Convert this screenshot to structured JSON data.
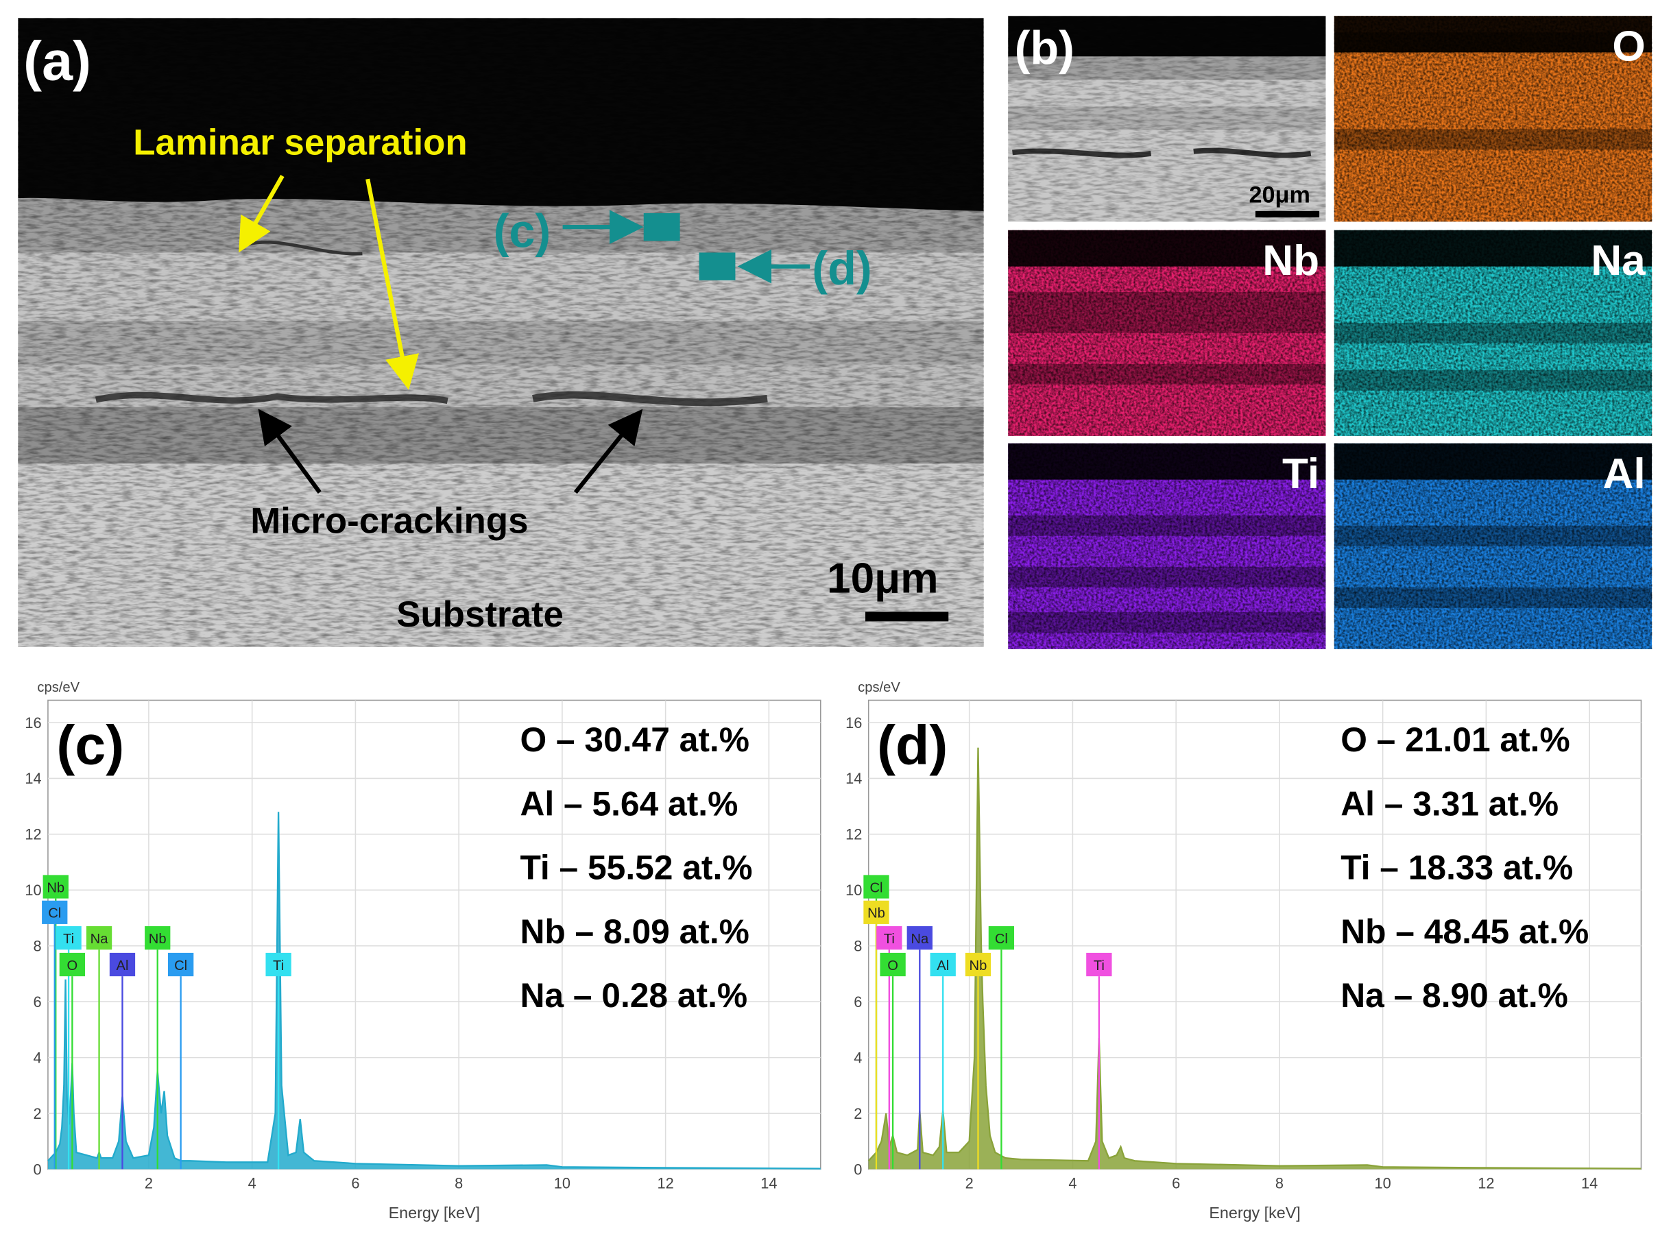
{
  "micrograph_a": {
    "label": "(a)",
    "annotations": [
      "Laminar separation",
      "Micro-crackings",
      "Substrate"
    ],
    "markers": [
      "(c)",
      "(d)"
    ],
    "scale_bar": "10μm"
  },
  "micrograph_b": {
    "label": "(b)",
    "scale_bar": "20μm",
    "maps": [
      {
        "element": "O",
        "color": "#e8751a"
      },
      {
        "element": "Nb",
        "color": "#e8206e"
      },
      {
        "element": "Na",
        "color": "#20c8cc"
      },
      {
        "element": "Ti",
        "color": "#8a1ee8"
      },
      {
        "element": "Al",
        "color": "#1a80e0"
      }
    ]
  },
  "chart_data": [
    {
      "type": "area",
      "label": "(c)",
      "y_label": "cps/eV",
      "x_label": "Energy [keV]",
      "color": "#22aacc",
      "x": [
        0.05,
        0.2,
        0.28,
        0.32,
        0.36,
        0.39,
        0.42,
        0.46,
        0.5,
        0.52,
        0.55,
        0.6,
        0.8,
        1.0,
        1.04,
        1.08,
        1.3,
        1.42,
        1.49,
        1.56,
        1.7,
        2.0,
        2.1,
        2.17,
        2.24,
        2.3,
        2.36,
        2.5,
        2.62,
        2.8,
        3.5,
        4.3,
        4.45,
        4.51,
        4.57,
        4.7,
        4.85,
        4.93,
        5.0,
        5.2,
        6,
        8,
        9.7,
        10,
        12,
        14,
        15
      ],
      "values": [
        0.3,
        0.6,
        0.9,
        1.5,
        3,
        6.8,
        2.5,
        1.6,
        3,
        3.8,
        2,
        0.6,
        0.5,
        0.4,
        0.6,
        0.4,
        0.4,
        1,
        2.6,
        1,
        0.4,
        0.5,
        1.5,
        3.5,
        2,
        2.8,
        1.2,
        0.4,
        0.3,
        0.3,
        0.25,
        0.25,
        2,
        12.8,
        3,
        0.5,
        0.6,
        1.8,
        0.6,
        0.3,
        0.2,
        0.12,
        0.15,
        0.08,
        0.05,
        0.03,
        0.02
      ],
      "xlim": [
        0.05,
        15
      ],
      "ylim": [
        0,
        16.8
      ],
      "xticks": [
        2,
        4,
        6,
        8,
        10,
        12,
        14
      ],
      "yticks": [
        0,
        2,
        4,
        6,
        8,
        10,
        12,
        14,
        16
      ],
      "grid": true,
      "composition": [
        "O – 30.47 at.%",
        "Al – 5.64 at.%",
        "Ti – 55.52 at.%",
        "Nb – 8.09 at.%",
        "Na – 0.28 at.%"
      ],
      "peak_labels": [
        {
          "label": "Nb",
          "x": 0.2,
          "color": "#33dd33"
        },
        {
          "label": "Cl",
          "x": 0.18,
          "color": "#2a9cf0"
        },
        {
          "label": "Ti",
          "x": 0.45,
          "color": "#33e0f0"
        },
        {
          "label": "Na",
          "x": 1.04,
          "color": "#66dd33"
        },
        {
          "label": "Nb",
          "x": 2.17,
          "color": "#33dd33"
        },
        {
          "label": "O",
          "x": 0.52,
          "color": "#33dd33"
        },
        {
          "label": "Al",
          "x": 1.49,
          "color": "#4a4ae0"
        },
        {
          "label": "Cl",
          "x": 2.62,
          "color": "#2a9cf0"
        },
        {
          "label": "Ti",
          "x": 4.51,
          "color": "#33e0f0"
        }
      ]
    },
    {
      "type": "area",
      "label": "(d)",
      "y_label": "cps/eV",
      "x_label": "Energy [keV]",
      "color": "#8aa33a",
      "x": [
        0.05,
        0.2,
        0.3,
        0.39,
        0.45,
        0.52,
        0.6,
        0.8,
        1.0,
        1.04,
        1.1,
        1.3,
        1.42,
        1.49,
        1.56,
        1.8,
        2.0,
        2.1,
        2.17,
        2.23,
        2.26,
        2.32,
        2.4,
        2.5,
        2.7,
        3,
        4.3,
        4.45,
        4.51,
        4.57,
        4.7,
        4.85,
        4.93,
        5.0,
        5.2,
        6,
        8,
        9.7,
        10,
        12,
        14,
        15
      ],
      "values": [
        0.3,
        0.6,
        1,
        2,
        0.8,
        1.2,
        0.6,
        0.5,
        0.7,
        2.1,
        0.6,
        0.5,
        0.8,
        2.1,
        0.6,
        0.6,
        1,
        4,
        15.1,
        8,
        6,
        3,
        1.2,
        0.6,
        0.4,
        0.35,
        0.3,
        1,
        4.7,
        1,
        0.4,
        0.5,
        0.8,
        0.4,
        0.3,
        0.2,
        0.12,
        0.15,
        0.08,
        0.05,
        0.03,
        0.02
      ],
      "xlim": [
        0.05,
        15
      ],
      "ylim": [
        0,
        16.8
      ],
      "xticks": [
        2,
        4,
        6,
        8,
        10,
        12,
        14
      ],
      "yticks": [
        0,
        2,
        4,
        6,
        8,
        10,
        12,
        14,
        16
      ],
      "grid": true,
      "composition": [
        "O – 21.01 at.%",
        "Al – 3.31 at.%",
        "Ti – 18.33 at.%",
        "Nb – 48.45 at.%",
        "Na – 8.90 at.%"
      ],
      "peak_labels": [
        {
          "label": "Cl",
          "x": 0.2,
          "color": "#33dd33"
        },
        {
          "label": "Nb",
          "x": 0.2,
          "color": "#eedd22"
        },
        {
          "label": "Ti",
          "x": 0.45,
          "color": "#f050e0"
        },
        {
          "label": "Na",
          "x": 1.04,
          "color": "#4a4ae0"
        },
        {
          "label": "Cl",
          "x": 2.62,
          "color": "#33dd33"
        },
        {
          "label": "O",
          "x": 0.52,
          "color": "#33dd33"
        },
        {
          "label": "Al",
          "x": 1.49,
          "color": "#33e0f0"
        },
        {
          "label": "Nb",
          "x": 2.17,
          "color": "#eedd22"
        },
        {
          "label": "Ti",
          "x": 4.51,
          "color": "#f050e0"
        }
      ]
    }
  ]
}
